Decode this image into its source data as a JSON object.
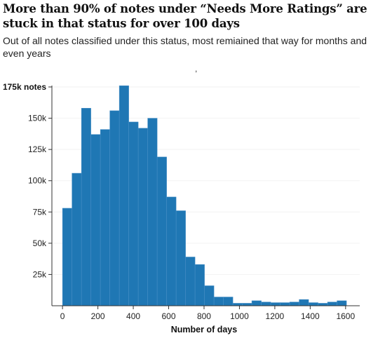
{
  "chart_data": {
    "type": "bar",
    "title": "More than 90% of notes under “Needs More Ratings” are stuck in that status for over 100 days",
    "subtitle": "Out of all notes classified under this status, most remiained that way for months and even years",
    "stray_mark": ",",
    "xlabel": "Number of days",
    "ylabel": "",
    "xlim": [
      -60,
      1680
    ],
    "ylim": [
      0,
      175000
    ],
    "x_ticks": [
      0,
      200,
      400,
      600,
      800,
      1000,
      1200,
      1400,
      1600
    ],
    "x_tick_labels": [
      "0",
      "200",
      "400",
      "600",
      "800",
      "1000",
      "1200",
      "1400",
      "1600"
    ],
    "y_ticks": [
      25000,
      50000,
      75000,
      100000,
      125000,
      150000,
      175000
    ],
    "y_tick_labels": [
      "25k",
      "50k",
      "75k",
      "100k",
      "125k",
      "150k",
      "175k notes"
    ],
    "bar_color": "#1f77b4",
    "bin_width": 53.5,
    "bin_starts": [
      0,
      53.5,
      107,
      160.5,
      214,
      267.5,
      321,
      374.5,
      428,
      481.5,
      535,
      588.5,
      642,
      695.5,
      749,
      802.5,
      856,
      909.5,
      963,
      1016.5,
      1070,
      1123.5,
      1177,
      1230.5,
      1284,
      1337.5,
      1391,
      1444.5,
      1498,
      1551.5
    ],
    "values": [
      78000,
      106000,
      158000,
      137000,
      141000,
      156000,
      176000,
      147000,
      142000,
      150000,
      119000,
      87000,
      76000,
      39000,
      33000,
      16000,
      7000,
      7000,
      2000,
      2000,
      4000,
      3000,
      2500,
      2500,
      3000,
      5000,
      2500,
      2000,
      3000,
      4000
    ]
  }
}
